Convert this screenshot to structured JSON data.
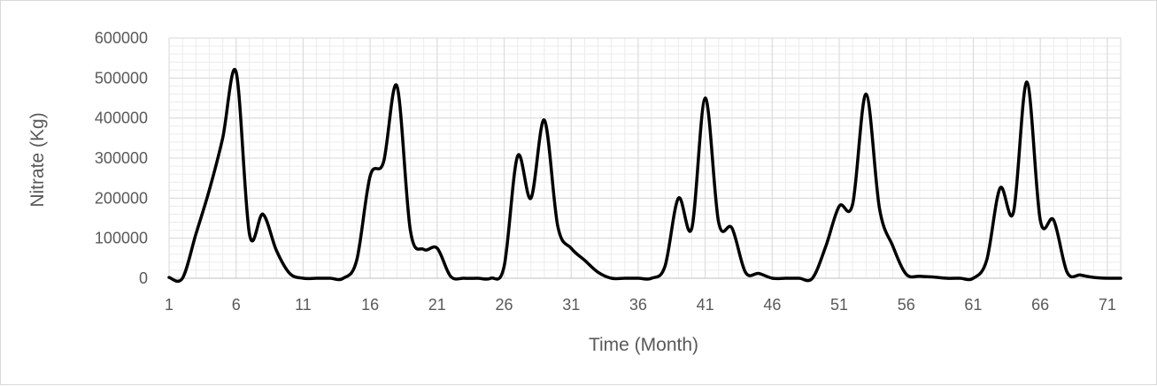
{
  "chart_data": {
    "type": "line",
    "title": "",
    "xlabel": "Time (Month)",
    "ylabel": "Nitrate (Kg)",
    "x_ticks": [
      "1",
      "6",
      "11",
      "16",
      "21",
      "26",
      "31",
      "36",
      "41",
      "46",
      "51",
      "56",
      "61",
      "66",
      "71"
    ],
    "y_ticks": [
      "0",
      "100000",
      "200000",
      "300000",
      "400000",
      "500000",
      "600000"
    ],
    "xlim": [
      1,
      72
    ],
    "ylim": [
      0,
      600000
    ],
    "grid": true,
    "line_color": "#000000",
    "series": [
      {
        "x": [
          1,
          2,
          3,
          4,
          5,
          6,
          7,
          8,
          9,
          10,
          11,
          12,
          13,
          14,
          15,
          16,
          17,
          18,
          19,
          20,
          21,
          22,
          23,
          24,
          25,
          26,
          27,
          28,
          29,
          30,
          31,
          32,
          33,
          34,
          35,
          36,
          37,
          38,
          39,
          40,
          41,
          42,
          43,
          44,
          45,
          46,
          47,
          48,
          49,
          50,
          51,
          52,
          53,
          54,
          55,
          56,
          57,
          58,
          59,
          60,
          61,
          62,
          63,
          64,
          65,
          66,
          67,
          68,
          69,
          70,
          71,
          72
        ],
        "values": [
          2000,
          0,
          110000,
          220000,
          350000,
          515000,
          110000,
          160000,
          70000,
          12000,
          0,
          0,
          0,
          0,
          45000,
          255000,
          290000,
          480000,
          120000,
          72000,
          75000,
          5000,
          0,
          0,
          0,
          30000,
          305000,
          200000,
          395000,
          130000,
          75000,
          45000,
          15000,
          0,
          0,
          0,
          0,
          30000,
          200000,
          125000,
          450000,
          140000,
          125000,
          15000,
          12000,
          0,
          0,
          0,
          0,
          80000,
          180000,
          185000,
          460000,
          175000,
          80000,
          10000,
          5000,
          3000,
          0,
          0,
          0,
          45000,
          225000,
          165000,
          490000,
          145000,
          145000,
          15000,
          8000,
          2000,
          0,
          0
        ]
      }
    ]
  }
}
